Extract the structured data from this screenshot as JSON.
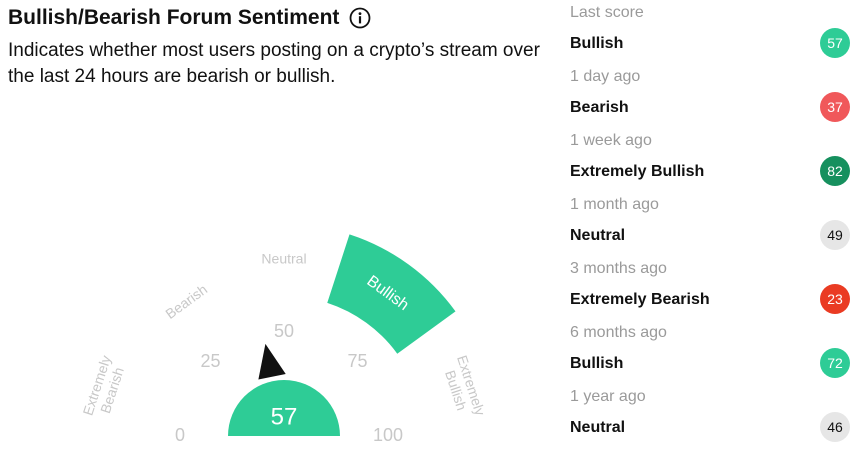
{
  "widget": {
    "title": "Bullish/Bearish Forum Sentiment",
    "info_icon": "info-circle-icon",
    "description": "Indicates whether most users posting on a crypto’s stream over the last 24 hours are bearish or bullish."
  },
  "gauge": {
    "value": 57,
    "value_text": "57",
    "active_zone": "Bullish",
    "scale_min": 0,
    "scale_max": 100,
    "ticks": [
      "0",
      "25",
      "50",
      "75",
      "100"
    ],
    "zones": [
      "Extremely Bearish",
      "Bearish",
      "Neutral",
      "Bullish",
      "Extremely Bullish"
    ],
    "colors": {
      "active": "#2ecc96",
      "muted_text": "#c8c8c8",
      "pointer": "#111111"
    }
  },
  "history": {
    "items": [
      {
        "when": "Last score",
        "label": "Bullish",
        "score": "57",
        "color": "#2ecc96",
        "text_color": "#ffffff"
      },
      {
        "when": "1 day ago",
        "label": "Bearish",
        "score": "37",
        "color": "#f0585a",
        "text_color": "#ffffff"
      },
      {
        "when": "1 week ago",
        "label": "Extremely Bullish",
        "score": "82",
        "color": "#16905e",
        "text_color": "#ffffff"
      },
      {
        "when": "1 month ago",
        "label": "Neutral",
        "score": "49",
        "color": "#e6e6e6",
        "text_color": "#111111"
      },
      {
        "when": "3 months ago",
        "label": "Extremely Bearish",
        "score": "23",
        "color": "#ea3b23",
        "text_color": "#ffffff"
      },
      {
        "when": "6 months ago",
        "label": "Bullish",
        "score": "72",
        "color": "#2ecc96",
        "text_color": "#ffffff"
      },
      {
        "when": "1 year ago",
        "label": "Neutral",
        "score": "46",
        "color": "#e6e6e6",
        "text_color": "#111111"
      }
    ]
  }
}
